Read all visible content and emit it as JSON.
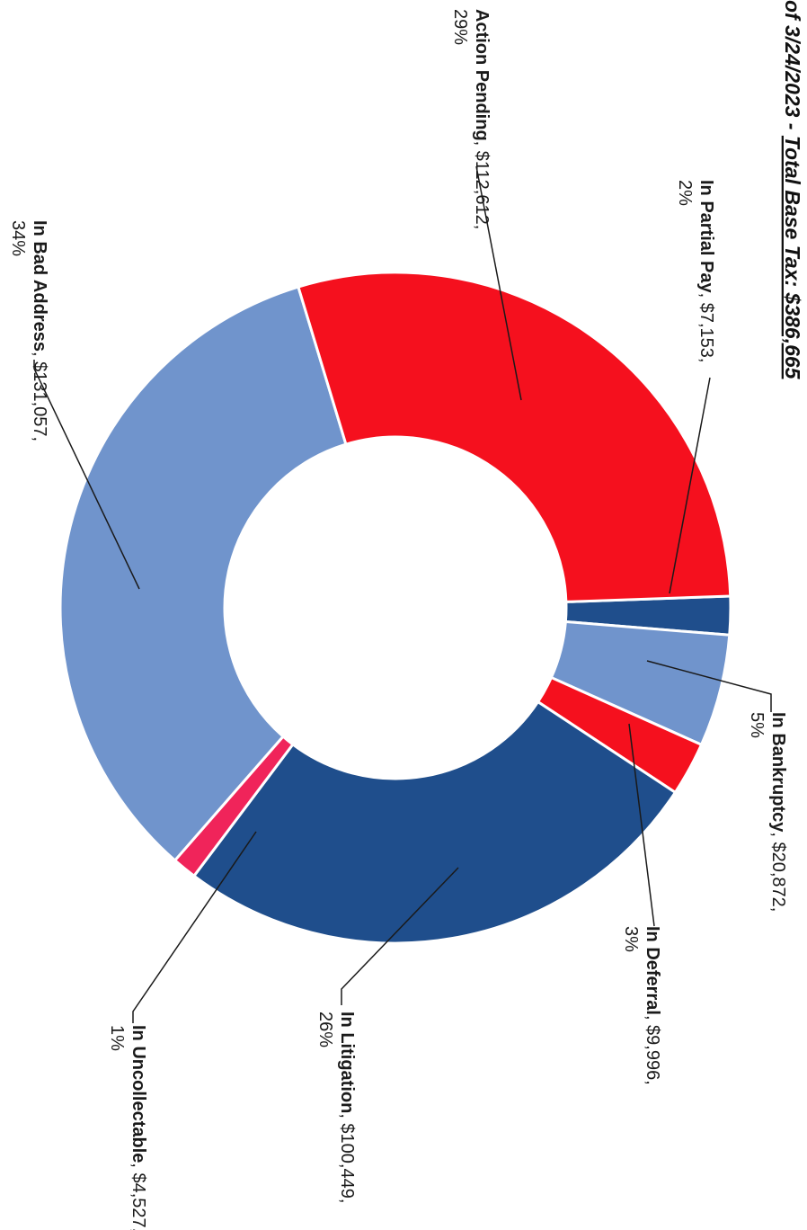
{
  "chart_data": {
    "type": "pie",
    "donut": true,
    "title_prefix": "of 3/24/2023 - ",
    "title_emphasis": "Total Base Tax: $386,665",
    "slices": [
      {
        "name": "In Partial Pay",
        "value_text": "$7,153",
        "pct_text": "2%",
        "value": 7153,
        "color": "#1f4e8c"
      },
      {
        "name": "In Bankruptcy",
        "value_text": "$20,872",
        "pct_text": "5%",
        "value": 20872,
        "color": "#7094cc"
      },
      {
        "name": "In Deferral",
        "value_text": "$9,996",
        "pct_text": "3%",
        "value": 9996,
        "color": "#f5101e"
      },
      {
        "name": "In Litigation",
        "value_text": "$100,449",
        "pct_text": "26%",
        "value": 100449,
        "color": "#1f4e8c"
      },
      {
        "name": "In Uncollectable",
        "value_text": "$4,527",
        "pct_text": "1%",
        "value": 4527,
        "color": "#f0245a"
      },
      {
        "name": "In Bad Address",
        "value_text": "$131,057",
        "pct_text": "34%",
        "value": 131057,
        "color": "#7094cc"
      },
      {
        "name": "Action Pending",
        "value_text": "$112,612",
        "pct_text": "29%",
        "value": 112612,
        "color": "#f5101e"
      }
    ]
  }
}
